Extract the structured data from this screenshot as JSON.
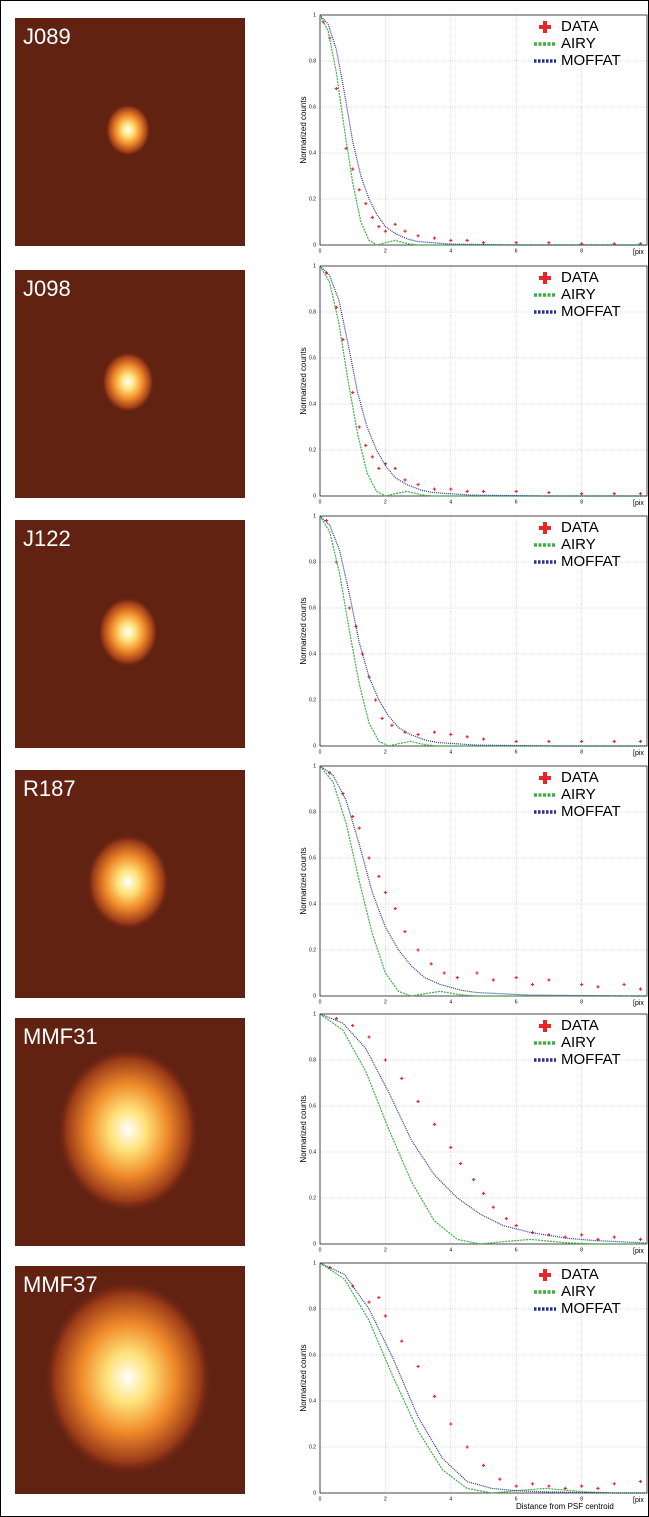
{
  "images": [
    {
      "label": "J089"
    },
    {
      "label": "J098"
    },
    {
      "label": "J122"
    },
    {
      "label": "R187"
    },
    {
      "label": "MMF31"
    },
    {
      "label": "MMF37"
    }
  ],
  "chart_data": [
    {
      "type": "line",
      "ylabel": "Normarized counts",
      "xlabel": "[pix",
      "xlim": [
        0,
        10
      ],
      "ylim": [
        0,
        1
      ],
      "xticks": [
        0,
        2,
        4,
        6,
        8
      ],
      "yticks": [
        0,
        0.2,
        0.4,
        0.6,
        0.8,
        1
      ],
      "grid": true,
      "legend": "upper right",
      "series": [
        {
          "name": "DATA",
          "color": "#e8262a",
          "mode": "markers",
          "x": [
            0.1,
            0.3,
            0.5,
            0.8,
            1,
            1.2,
            1.4,
            1.6,
            1.8,
            2,
            2.3,
            2.6,
            3,
            3.5,
            4,
            4.5,
            5,
            6,
            7,
            8,
            9,
            9.8
          ],
          "values": [
            0.97,
            0.9,
            0.68,
            0.42,
            0.33,
            0.24,
            0.18,
            0.12,
            0.08,
            0.06,
            0.09,
            0.06,
            0.04,
            0.03,
            0.02,
            0.02,
            0.01,
            0.01,
            0.01,
            0.005,
            0.005,
            0.005
          ]
        },
        {
          "name": "AIRY",
          "color": "#3cb043",
          "dash": "dashed",
          "x": [
            0,
            0.25,
            0.5,
            0.75,
            1,
            1.25,
            1.5,
            1.75,
            2,
            2.3,
            2.7,
            3,
            4,
            6,
            10
          ],
          "values": [
            1,
            0.93,
            0.75,
            0.5,
            0.27,
            0.1,
            0.02,
            0,
            0.01,
            0.02,
            0.005,
            0,
            0,
            0,
            0
          ]
        },
        {
          "name": "MOFFAT",
          "color": "#2b2f8f",
          "dash": "dotted",
          "x": [
            0,
            0.25,
            0.5,
            0.75,
            1,
            1.25,
            1.5,
            1.75,
            2,
            2.3,
            2.7,
            3,
            4,
            6,
            10
          ],
          "values": [
            1,
            0.96,
            0.85,
            0.66,
            0.45,
            0.3,
            0.2,
            0.13,
            0.08,
            0.05,
            0.025,
            0.015,
            0.004,
            0,
            0
          ]
        }
      ]
    },
    {
      "type": "line",
      "ylabel": "Normarized counts",
      "xlabel": "[pix",
      "xlim": [
        0,
        10
      ],
      "ylim": [
        0,
        1
      ],
      "xticks": [
        0,
        2,
        4,
        6,
        8
      ],
      "yticks": [
        0,
        0.2,
        0.4,
        0.6,
        0.8,
        1
      ],
      "grid": true,
      "legend": "upper right",
      "series": [
        {
          "name": "DATA",
          "color": "#e8262a",
          "mode": "markers",
          "x": [
            0.2,
            0.5,
            0.7,
            1,
            1.2,
            1.4,
            1.6,
            1.8,
            2,
            2.3,
            2.6,
            3,
            3.5,
            4,
            4.5,
            5,
            6,
            7,
            8,
            9,
            9.8
          ],
          "values": [
            0.97,
            0.82,
            0.68,
            0.45,
            0.3,
            0.22,
            0.17,
            0.12,
            0.14,
            0.12,
            0.07,
            0.05,
            0.03,
            0.03,
            0.02,
            0.02,
            0.02,
            0.015,
            0.01,
            0.01,
            0.01
          ]
        },
        {
          "name": "AIRY",
          "color": "#3cb043",
          "dash": "dashed",
          "x": [
            0,
            0.29,
            0.58,
            0.86,
            1.15,
            1.44,
            1.73,
            2.01,
            2.3,
            2.65,
            3.11,
            3.45,
            4.6,
            6.9,
            10
          ],
          "values": [
            1,
            0.93,
            0.75,
            0.5,
            0.27,
            0.1,
            0.02,
            0,
            0.01,
            0.02,
            0.005,
            0,
            0,
            0,
            0
          ]
        },
        {
          "name": "MOFFAT",
          "color": "#2b2f8f",
          "dash": "dotted",
          "x": [
            0,
            0.29,
            0.58,
            0.86,
            1.15,
            1.44,
            1.73,
            2.01,
            2.3,
            2.65,
            3.11,
            3.45,
            4.6,
            6.9,
            10
          ],
          "values": [
            1,
            0.96,
            0.85,
            0.66,
            0.45,
            0.3,
            0.2,
            0.13,
            0.08,
            0.05,
            0.025,
            0.015,
            0.004,
            0,
            0
          ]
        }
      ]
    },
    {
      "type": "line",
      "ylabel": "Normarized counts",
      "xlabel": "[pix",
      "xlim": [
        0,
        10
      ],
      "ylim": [
        0,
        1
      ],
      "xticks": [
        0,
        2,
        4,
        6,
        8
      ],
      "yticks": [
        0,
        0.2,
        0.4,
        0.6,
        0.8,
        1
      ],
      "grid": true,
      "legend": "upper right",
      "series": [
        {
          "name": "DATA",
          "color": "#e8262a",
          "mode": "markers",
          "x": [
            0.2,
            0.5,
            0.9,
            1.1,
            1.3,
            1.5,
            1.7,
            1.9,
            2.2,
            2.6,
            3,
            3.5,
            4,
            4.5,
            5,
            6,
            7,
            8,
            9,
            9.8
          ],
          "values": [
            0.98,
            0.8,
            0.6,
            0.52,
            0.4,
            0.3,
            0.2,
            0.12,
            0.09,
            0.06,
            0.05,
            0.06,
            0.05,
            0.04,
            0.03,
            0.02,
            0.02,
            0.02,
            0.02,
            0.02
          ]
        },
        {
          "name": "AIRY",
          "color": "#3cb043",
          "dash": "dashed",
          "x": [
            0,
            0.3,
            0.6,
            0.9,
            1.2,
            1.5,
            1.8,
            2.1,
            2.4,
            2.76,
            3.24,
            3.6,
            4.8,
            7.2,
            10
          ],
          "values": [
            1,
            0.93,
            0.75,
            0.5,
            0.27,
            0.1,
            0.02,
            0,
            0.01,
            0.02,
            0.005,
            0,
            0,
            0,
            0
          ]
        },
        {
          "name": "MOFFAT",
          "color": "#2b2f8f",
          "dash": "dotted",
          "x": [
            0,
            0.3,
            0.6,
            0.9,
            1.2,
            1.5,
            1.8,
            2.1,
            2.4,
            2.76,
            3.24,
            3.6,
            4.8,
            7.2,
            10
          ],
          "values": [
            1,
            0.96,
            0.85,
            0.66,
            0.45,
            0.3,
            0.2,
            0.13,
            0.08,
            0.05,
            0.025,
            0.015,
            0.004,
            0,
            0
          ]
        }
      ]
    },
    {
      "type": "line",
      "ylabel": "Normarized counts",
      "xlabel": "[pix",
      "xlim": [
        0,
        10
      ],
      "ylim": [
        0,
        1
      ],
      "xticks": [
        0,
        2,
        4,
        6,
        8
      ],
      "yticks": [
        0,
        0.2,
        0.4,
        0.6,
        0.8,
        1
      ],
      "grid": true,
      "legend": "upper right",
      "series": [
        {
          "name": "DATA",
          "color": "#e8262a",
          "mode": "markers",
          "x": [
            0.3,
            0.7,
            1,
            1.2,
            1.5,
            1.8,
            2,
            2.3,
            2.6,
            3,
            3.4,
            3.8,
            4.2,
            4.8,
            5.3,
            6,
            6.5,
            7,
            8,
            8.5,
            9.3,
            9.8
          ],
          "values": [
            0.97,
            0.88,
            0.78,
            0.73,
            0.6,
            0.52,
            0.45,
            0.38,
            0.28,
            0.2,
            0.14,
            0.1,
            0.08,
            0.1,
            0.07,
            0.08,
            0.05,
            0.07,
            0.05,
            0.04,
            0.05,
            0.03
          ]
        },
        {
          "name": "AIRY",
          "color": "#3cb043",
          "dash": "dashed",
          "x": [
            0,
            0.4,
            0.8,
            1.2,
            1.6,
            2,
            2.4,
            2.8,
            3.2,
            3.68,
            4.32,
            4.8,
            6.4,
            9.6,
            10
          ],
          "values": [
            1,
            0.93,
            0.75,
            0.5,
            0.27,
            0.1,
            0.02,
            0,
            0.01,
            0.02,
            0.005,
            0,
            0,
            0,
            0
          ]
        },
        {
          "name": "MOFFAT",
          "color": "#2b2f8f",
          "dash": "dotted",
          "x": [
            0,
            0.4,
            0.8,
            1.2,
            1.6,
            2,
            2.4,
            2.8,
            3.2,
            3.68,
            4.32,
            4.8,
            6.4,
            9.6,
            10
          ],
          "values": [
            1,
            0.96,
            0.85,
            0.66,
            0.45,
            0.3,
            0.2,
            0.13,
            0.08,
            0.05,
            0.025,
            0.015,
            0.004,
            0,
            0
          ]
        }
      ]
    },
    {
      "type": "line",
      "ylabel": "Normarized counts",
      "xlabel": "[pix",
      "xlim": [
        0,
        10
      ],
      "ylim": [
        0,
        1
      ],
      "xticks": [
        0,
        2,
        4,
        6,
        8
      ],
      "yticks": [
        0,
        0.2,
        0.4,
        0.6,
        0.8,
        1
      ],
      "grid": true,
      "legend": "upper right",
      "series": [
        {
          "name": "DATA",
          "color": "#e8262a",
          "mode": "markers",
          "x": [
            0.5,
            1,
            1.5,
            2,
            2.5,
            3,
            3.5,
            4,
            4.3,
            4.7,
            5,
            5.3,
            5.7,
            6,
            6.5,
            7,
            7.5,
            8,
            8.5,
            9,
            9.8
          ],
          "values": [
            0.98,
            0.95,
            0.9,
            0.8,
            0.72,
            0.62,
            0.52,
            0.42,
            0.35,
            0.28,
            0.22,
            0.16,
            0.11,
            0.08,
            0.05,
            0.04,
            0.03,
            0.04,
            0.02,
            0.03,
            0.02
          ]
        },
        {
          "name": "AIRY",
          "color": "#3cb043",
          "dash": "dashed",
          "x": [
            0,
            0.7,
            1.4,
            2.1,
            2.8,
            3.5,
            4.2,
            4.9,
            5.6,
            6.44,
            7.56,
            8.4,
            10
          ],
          "values": [
            1,
            0.93,
            0.75,
            0.5,
            0.27,
            0.1,
            0.02,
            0,
            0.01,
            0.02,
            0.005,
            0,
            0
          ]
        },
        {
          "name": "MOFFAT",
          "color": "#2b2f8f",
          "dash": "dotted",
          "x": [
            0,
            0.7,
            1.4,
            2.1,
            2.8,
            3.5,
            4.2,
            4.9,
            5.6,
            6.44,
            7.56,
            8.4,
            10
          ],
          "values": [
            1,
            0.96,
            0.85,
            0.66,
            0.45,
            0.3,
            0.2,
            0.13,
            0.08,
            0.05,
            0.025,
            0.015,
            0.004
          ]
        }
      ]
    },
    {
      "type": "line",
      "ylabel": "Normarized counts",
      "xlabel": "[pix",
      "xtitle": "Distance from PSF centroid",
      "xlim": [
        0,
        10
      ],
      "ylim": [
        0,
        1
      ],
      "xticks": [
        0,
        2,
        4,
        6,
        8
      ],
      "yticks": [
        0,
        0.2,
        0.4,
        0.6,
        0.8,
        1
      ],
      "grid": true,
      "legend": "upper right",
      "series": [
        {
          "name": "DATA",
          "color": "#e8262a",
          "mode": "markers",
          "x": [
            0.3,
            1,
            1.5,
            1.8,
            2,
            2.5,
            3,
            3.5,
            4,
            4.5,
            5,
            5.5,
            6,
            6.5,
            7,
            7.5,
            8,
            8.5,
            9,
            9.8
          ],
          "values": [
            0.98,
            0.9,
            0.83,
            0.85,
            0.77,
            0.66,
            0.55,
            0.42,
            0.3,
            0.2,
            0.12,
            0.06,
            0.03,
            0.04,
            0.03,
            0.02,
            0.03,
            0.02,
            0.04,
            0.05
          ]
        },
        {
          "name": "AIRY",
          "color": "#3cb043",
          "dash": "dashed",
          "x": [
            0,
            0.75,
            1.5,
            2.25,
            3,
            3.75,
            4.5,
            5.25,
            6,
            6.9,
            8.1,
            9,
            10
          ],
          "values": [
            1,
            0.93,
            0.75,
            0.5,
            0.27,
            0.1,
            0.02,
            0,
            0.01,
            0.02,
            0.005,
            0,
            0
          ]
        },
        {
          "name": "MOFFAT",
          "color": "#2b2f8f",
          "dash": "dotted",
          "x": [
            0,
            0.75,
            1.5,
            2.25,
            3,
            3.75,
            4.5,
            5.25,
            6,
            6.9,
            8.1,
            9,
            10
          ],
          "values": [
            1,
            0.95,
            0.8,
            0.58,
            0.33,
            0.15,
            0.05,
            0.02,
            0.01,
            0.005,
            0.002,
            0,
            0
          ]
        }
      ]
    }
  ]
}
